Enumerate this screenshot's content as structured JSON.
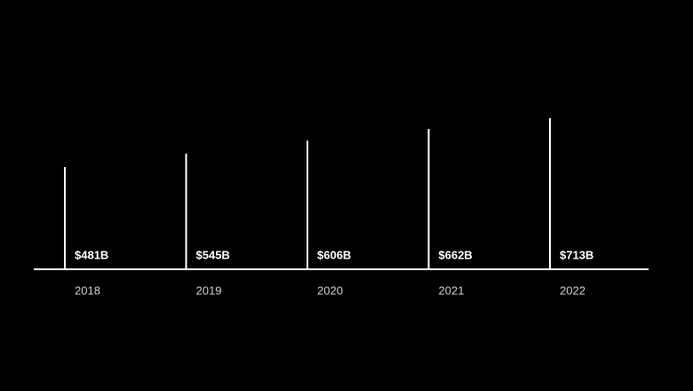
{
  "chart_data": {
    "type": "bar",
    "categories": [
      "2018",
      "2019",
      "2020",
      "2021",
      "2022"
    ],
    "values": [
      481,
      545,
      606,
      662,
      713
    ],
    "value_labels": [
      "$481B",
      "$545B",
      "$606B",
      "$662B",
      "$713B"
    ],
    "color": "#ffffff"
  }
}
